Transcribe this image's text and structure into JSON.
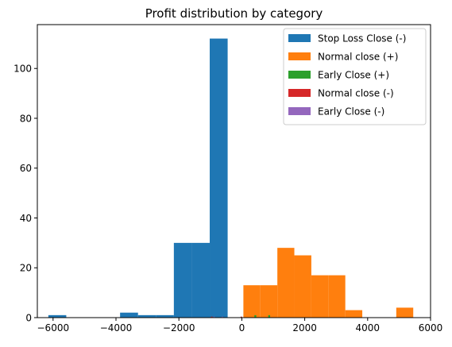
{
  "chart_data": {
    "type": "bar",
    "title": "Profit distribution by category",
    "xlabel": "",
    "ylabel": "",
    "xlim": [
      -6500,
      6000
    ],
    "ylim": [
      0,
      117.6
    ],
    "x_ticks": [
      -6000,
      -4000,
      -2000,
      0,
      2000,
      4000,
      6000
    ],
    "x_tick_labels": [
      "−6000",
      "−4000",
      "−2000",
      "0",
      "2000",
      "4000",
      "6000"
    ],
    "y_ticks": [
      0,
      20,
      40,
      60,
      80,
      100
    ],
    "y_tick_labels": [
      "0",
      "20",
      "40",
      "60",
      "80",
      "100"
    ],
    "grid": false,
    "legend_position": "top-right",
    "series": [
      {
        "name": "Stop Loss Close (-)",
        "color": "#1f77b4",
        "bins": [
          {
            "x0": -6150,
            "x1": -5580,
            "count": 1
          },
          {
            "x0": -5580,
            "x1": -5010,
            "count": 0
          },
          {
            "x0": -5010,
            "x1": -4440,
            "count": 0
          },
          {
            "x0": -4440,
            "x1": -3870,
            "count": 0
          },
          {
            "x0": -3870,
            "x1": -3300,
            "count": 2
          },
          {
            "x0": -3300,
            "x1": -2730,
            "count": 1
          },
          {
            "x0": -2730,
            "x1": -2160,
            "count": 1
          },
          {
            "x0": -2160,
            "x1": -1590,
            "count": 30
          },
          {
            "x0": -1590,
            "x1": -1020,
            "count": 30
          },
          {
            "x0": -1020,
            "x1": -450,
            "count": 112
          }
        ]
      },
      {
        "name": "Normal close (+)",
        "color": "#ff7f0e",
        "bins": [
          {
            "x0": 50,
            "x1": 590,
            "count": 13
          },
          {
            "x0": 590,
            "x1": 1130,
            "count": 13
          },
          {
            "x0": 1130,
            "x1": 1670,
            "count": 28
          },
          {
            "x0": 1670,
            "x1": 2210,
            "count": 25
          },
          {
            "x0": 2210,
            "x1": 2750,
            "count": 17
          },
          {
            "x0": 2750,
            "x1": 3290,
            "count": 17
          },
          {
            "x0": 3290,
            "x1": 3830,
            "count": 3
          },
          {
            "x0": 3830,
            "x1": 4370,
            "count": 0
          },
          {
            "x0": 4370,
            "x1": 4910,
            "count": 0
          },
          {
            "x0": 4910,
            "x1": 5450,
            "count": 4
          }
        ]
      },
      {
        "name": "Early Close (+)",
        "color": "#2ca02c",
        "bins": [
          {
            "x0": 400,
            "x1": 460,
            "count": 1
          },
          {
            "x0": 840,
            "x1": 900,
            "count": 1
          }
        ]
      },
      {
        "name": "Normal close (-)",
        "color": "#d62728",
        "bins": [
          {
            "x0": -980,
            "x1": -930,
            "count": 0.4
          },
          {
            "x0": -40,
            "x1": 10,
            "count": 0.4
          }
        ]
      },
      {
        "name": "Early Close (-)",
        "color": "#9467bd",
        "bins": [
          {
            "x0": -900,
            "x1": -860,
            "count": 0.4
          },
          {
            "x0": -640,
            "x1": -600,
            "count": 0.4
          }
        ]
      }
    ]
  }
}
